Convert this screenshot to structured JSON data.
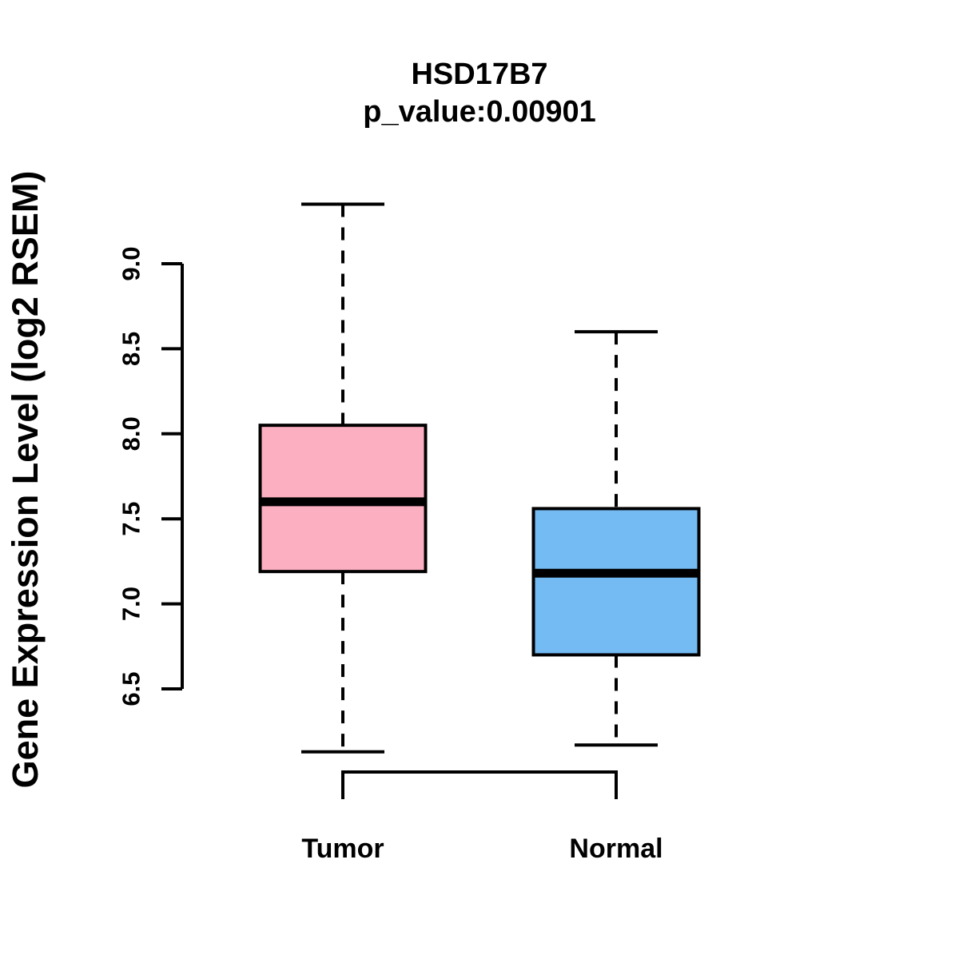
{
  "background": "#FFFFFF",
  "chart_data": {
    "type": "boxplot",
    "title": "HSD17B7",
    "subtitle": "p_value:0.00901",
    "xlabel": "",
    "ylabel": "Gene Expression Level (log2 RSEM)",
    "categories": [
      "Tumor",
      "Normal"
    ],
    "yticks": [
      6.5,
      7.0,
      7.5,
      8.0,
      8.5,
      9.0
    ],
    "ylim": [
      6.0,
      9.45
    ],
    "grid": false,
    "legend": "none",
    "line_color": "#000000",
    "series": [
      {
        "name": "Tumor",
        "color": "#FDAFC2",
        "whisker_low": 6.13,
        "q1": 7.19,
        "median": 7.6,
        "q3": 8.05,
        "whisker_high": 9.35
      },
      {
        "name": "Normal",
        "color": "#74BBF3",
        "whisker_low": 6.17,
        "q1": 6.7,
        "median": 7.18,
        "q3": 7.56,
        "whisker_high": 8.6
      }
    ]
  }
}
